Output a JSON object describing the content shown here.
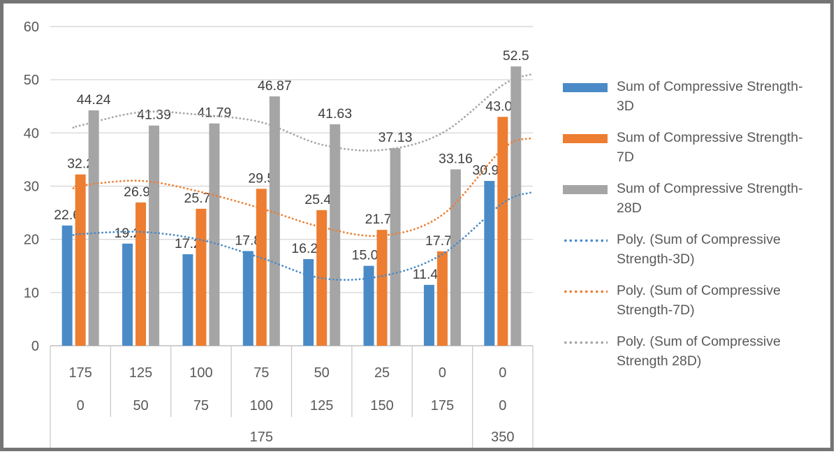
{
  "chart_data": {
    "type": "bar",
    "title": "",
    "xlabel": "",
    "ylabel": "",
    "ylim": [
      0,
      60
    ],
    "yticks": [
      0,
      10,
      20,
      30,
      40,
      50,
      60
    ],
    "grid": true,
    "legend_position": "right",
    "categories_level1": [
      "175",
      "125",
      "100",
      "75",
      "50",
      "25",
      "0",
      "0"
    ],
    "categories_level2": [
      "0",
      "50",
      "75",
      "100",
      "125",
      "150",
      "175",
      "0"
    ],
    "categories_level3": [
      {
        "label": "175",
        "span": 7
      },
      {
        "label": "350",
        "span": 1
      }
    ],
    "series": [
      {
        "name": "Sum of Compressive Strength-3D",
        "color": "#4A8BC7",
        "values": [
          22.6,
          19.2,
          17.2,
          17.8,
          16.29,
          15.02,
          11.44,
          30.98
        ]
      },
      {
        "name": "Sum of Compressive Strength-7D",
        "color": "#ED7D31",
        "values": [
          32.2,
          26.93,
          25.75,
          29.5,
          25.49,
          21.78,
          17.75,
          43.02
        ]
      },
      {
        "name": "Sum of Compressive Strength-28D",
        "color": "#A5A5A5",
        "values": [
          44.24,
          41.39,
          41.79,
          46.87,
          41.63,
          37.13,
          33.16,
          52.5
        ]
      }
    ],
    "trendlines": [
      {
        "name": "Poly. (Sum of Compressive Strength-3D)",
        "color": "#4A8BC7",
        "values": [
          20.8,
          21.0,
          21.4,
          19.9,
          16.5,
          12.7,
          13.1,
          17.2,
          26.8,
          28.8
        ]
      },
      {
        "name": "Poly. (Sum of Compressive Strength-7D)",
        "color": "#ED7D31",
        "values": [
          29.6,
          30.1,
          31.0,
          28.9,
          25.8,
          22.3,
          20.7,
          24.6,
          37.0,
          39.0
        ]
      },
      {
        "name": "Poly. (Sum of Compressive Strength 28D)",
        "color": "#A5A5A5",
        "values": [
          41.0,
          41.4,
          43.9,
          43.4,
          42.0,
          37.8,
          36.8,
          40.0,
          49.0,
          51.0
        ]
      }
    ],
    "legend": {
      "items": [
        {
          "swatch": "bar",
          "color": "#4A8BC7",
          "lines": [
            "Sum of Compressive Strength-",
            "3D"
          ]
        },
        {
          "swatch": "bar",
          "color": "#ED7D31",
          "lines": [
            "Sum of Compressive Strength-",
            "7D"
          ]
        },
        {
          "swatch": "bar",
          "color": "#A5A5A5",
          "lines": [
            "Sum of Compressive Strength-",
            "28D"
          ]
        },
        {
          "swatch": "dotted",
          "color": "#4A8BC7",
          "lines": [
            "Poly. (Sum of Compressive",
            "Strength-3D)"
          ]
        },
        {
          "swatch": "dotted",
          "color": "#ED7D31",
          "lines": [
            "Poly. (Sum of Compressive",
            "Strength-7D)"
          ]
        },
        {
          "swatch": "dotted",
          "color": "#A5A5A5",
          "lines": [
            "Poly. (Sum of Compressive",
            "Strength 28D)"
          ]
        }
      ]
    },
    "colors": {
      "grid": "#D9D9D9",
      "axis_line": "#BFBFBF",
      "table_line": "#C9C9C9",
      "tick_text": "#595959",
      "data_label_text": "#3F3F3F",
      "frame_border": "#757575"
    }
  }
}
